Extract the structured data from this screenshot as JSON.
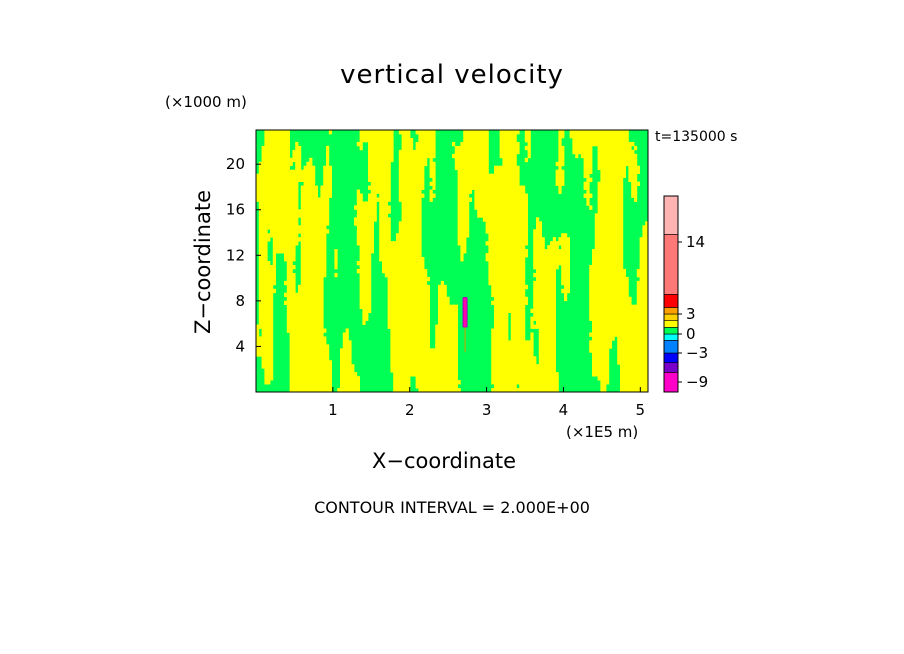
{
  "chart_data": {
    "type": "heatmap",
    "title": "vertical velocity",
    "xlabel": "X−coordinate",
    "ylabel": "Z−coordinate",
    "x_units": "(×1E5 m)",
    "y_units": "(×1000 m)",
    "time_label": "t=135000 s",
    "xlim": [
      0,
      5.1
    ],
    "ylim": [
      0,
      23
    ],
    "x_ticks": [
      1,
      2,
      3,
      4,
      5
    ],
    "y_ticks": [
      4,
      8,
      12,
      16,
      20
    ],
    "contour_interval": "CONTOUR INTERVAL = 2.000E+00",
    "field_colors": {
      "positive": "#ffff00",
      "negative": "#00ff55"
    },
    "feature": {
      "x": 2.72,
      "z_min": 5.7,
      "z_max": 8.3,
      "color": "#ff00aa",
      "outline": "#a000c0"
    },
    "colorbar": {
      "ticks": [
        {
          "value": 14,
          "label": "14"
        },
        {
          "value": 3,
          "label": "3"
        },
        {
          "value": 0,
          "label": "0"
        },
        {
          "value": -3,
          "label": "−3"
        },
        {
          "value": -9,
          "label": "−9"
        }
      ],
      "bands": [
        {
          "lo": -10,
          "hi": -7,
          "color": "#ff00c8"
        },
        {
          "lo": -7,
          "hi": -5,
          "color": "#7800c8"
        },
        {
          "lo": -5,
          "hi": -3,
          "color": "#0000ff"
        },
        {
          "lo": -3,
          "hi": -1,
          "color": "#0082ff"
        },
        {
          "lo": -1,
          "hi": 0,
          "color": "#00ffff"
        },
        {
          "lo": 0,
          "hi": 1,
          "color": "#00ff55"
        },
        {
          "lo": 1,
          "hi": 2,
          "color": "#ffff00"
        },
        {
          "lo": 2,
          "hi": 3,
          "color": "#ffd200"
        },
        {
          "lo": 3,
          "hi": 4,
          "color": "#ffa000"
        },
        {
          "lo": 4,
          "hi": 6,
          "color": "#ff0000"
        },
        {
          "lo": 6,
          "hi": 15,
          "color": "#ff7878"
        },
        {
          "lo": 15,
          "hi": 20,
          "color": "#ffb4b4"
        }
      ]
    }
  }
}
